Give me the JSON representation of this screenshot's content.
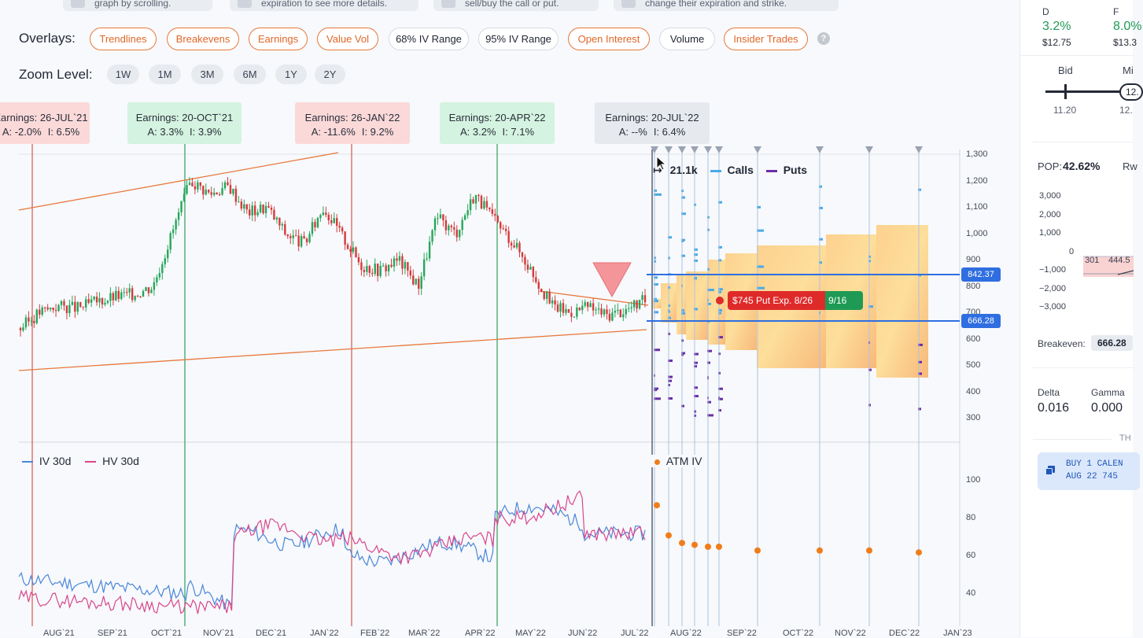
{
  "hints": [
    {
      "text": "graph by scrolling."
    },
    {
      "text": "expiration to see more details."
    },
    {
      "text": "sell/buy the call or put."
    },
    {
      "text": "change their expiration and strike."
    }
  ],
  "overlays": {
    "label": "Overlays:",
    "items": [
      {
        "label": "Trendlines",
        "active": true
      },
      {
        "label": "Breakevens",
        "active": true
      },
      {
        "label": "Earnings",
        "active": true
      },
      {
        "label": "Value Vol",
        "active": true
      },
      {
        "label": "68% IV Range",
        "active": false
      },
      {
        "label": "95% IV Range",
        "active": false
      },
      {
        "label": "Open Interest",
        "active": true
      },
      {
        "label": "Volume",
        "active": false
      },
      {
        "label": "Insider Trades",
        "active": true
      }
    ],
    "help": "?"
  },
  "zoom": {
    "label": "Zoom Level:",
    "items": [
      "1W",
      "1M",
      "3M",
      "6M",
      "1Y",
      "2Y"
    ]
  },
  "earnings": [
    {
      "title": "Earnings: 26-JUL`21",
      "a": "A: -2.0%",
      "i": "I: 6.5%",
      "tone": "red"
    },
    {
      "title": "Earnings: 20-OCT`21",
      "a": "A: 3.3%",
      "i": "I: 3.9%",
      "tone": "green"
    },
    {
      "title": "Earnings: 26-JAN`22",
      "a": "A: -11.6%",
      "i": "I: 9.2%",
      "tone": "red"
    },
    {
      "title": "Earnings: 20-APR`22",
      "a": "A: 3.2%",
      "i": "I: 7.1%",
      "tone": "green"
    },
    {
      "title": "Earnings: 20-JUL`22",
      "a": "A: --%",
      "i": "I: 6.4%",
      "tone": "grey"
    }
  ],
  "oi_legend": {
    "total": "21.1k",
    "calls": "Calls",
    "puts": "Puts"
  },
  "iv_legend": {
    "iv": "IV 30d",
    "hv": "HV 30d",
    "atm": "ATM IV"
  },
  "price_axis": [
    "1,300",
    "1,200",
    "1,100",
    "1,000",
    "900",
    "800",
    "700",
    "600",
    "500",
    "400",
    "300"
  ],
  "iv_axis": [
    "100",
    "80",
    "60",
    "40"
  ],
  "x_axis": [
    "AUG`21",
    "SEP`21",
    "OCT`21",
    "NOV`21",
    "DEC`21",
    "JAN`22",
    "FEB`22",
    "MAR`22",
    "APR`22",
    "MAY`22",
    "JUN`22",
    "JUL`22",
    "AUG`22",
    "SEP`22",
    "OCT`22",
    "NOV`22",
    "DEC`22",
    "JAN`23"
  ],
  "breakevens": {
    "upper": "842.37",
    "lower": "666.28"
  },
  "trade": {
    "label": "$745 Put Exp. 8/26",
    "exp2": "9/16"
  },
  "colors": {
    "accent": "#e8783c",
    "blue": "#2f6ee0",
    "up": "#26a65b",
    "down": "#d43b3b",
    "calls": "#4aa9e8",
    "puts": "#6a2fa8",
    "iv": "#4a86d8",
    "hv": "#d9468c",
    "atm": "#f07d1a"
  },
  "chart_data": {
    "type": "line",
    "price_close_approx": [
      640,
      700,
      725,
      715,
      740,
      760,
      770,
      800,
      1000,
      1200,
      1150,
      1180,
      1080,
      1100,
      1000,
      960,
      1100,
      990,
      880,
      860,
      900,
      800,
      1060,
      1000,
      1150,
      1050,
      970,
      860,
      730,
      700,
      720,
      690,
      710,
      745
    ],
    "atm_iv": [
      {
        "x": "Jul`22",
        "y": 87
      },
      {
        "x": "Aug`22",
        "y": 71
      },
      {
        "x": "Aug`22",
        "y": 67
      },
      {
        "x": "Aug`22",
        "y": 66
      },
      {
        "x": "Aug`22",
        "y": 65
      },
      {
        "x": "Aug`22",
        "y": 65
      },
      {
        "x": "Sep`22",
        "y": 63
      },
      {
        "x": "Oct`22",
        "y": 63
      },
      {
        "x": "Nov`22",
        "y": 63
      },
      {
        "x": "Dec`22",
        "y": 62
      }
    ],
    "ylim": [
      300,
      1300
    ],
    "iv_ylim": [
      30,
      100
    ]
  },
  "side": {
    "d_label": "D",
    "d_pct": "3.2%",
    "d_price": "$12.75",
    "f_label": "F",
    "f_pct": "8.0%",
    "f_price": "$13.3",
    "bid_label": "Bid",
    "bid_val": "11.20",
    "mid_label": "Mi",
    "mid_box": "12.",
    "mid_val": "12.",
    "pop_label": "POP:",
    "pop_val": "42.62%",
    "rw": "Rw",
    "pl_axis": [
      "3,000",
      "2,000",
      "1,000",
      "0",
      "−1,000",
      "−2,000",
      "−3,000"
    ],
    "pl_x": [
      "301",
      "444.5"
    ],
    "be_label": "Breakeven:",
    "be_val": "666.28",
    "delta_label": "Delta",
    "delta_val": "0.016",
    "gamma_label": "Gamma",
    "gamma_val": "0.000",
    "th": "TH",
    "order_line1": "BUY 1 CALEN",
    "order_line2": "AUG 22 745"
  }
}
